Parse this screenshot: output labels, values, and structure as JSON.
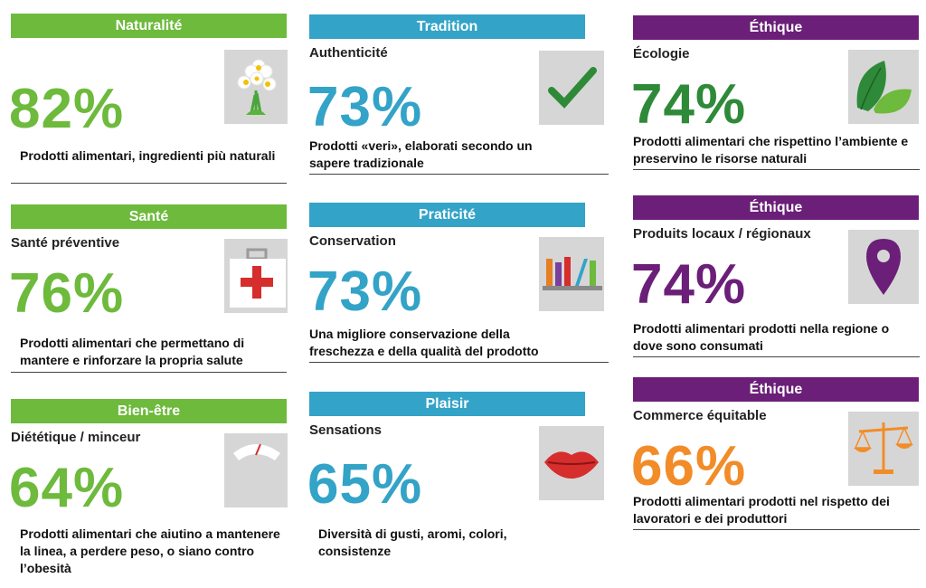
{
  "colors": {
    "green": "#6dba3c",
    "green_dark": "#2e8a38",
    "blue": "#33a3c7",
    "purple": "#6b1f78",
    "orange": "#f28c28",
    "red": "#d62d2d"
  },
  "cards": [
    {
      "header": "Naturalité",
      "subtitle": "",
      "percent": "82%",
      "description": "Prodotti alimentari, ingredienti più naturali",
      "icon": "flower-icon"
    },
    {
      "header": "Santé",
      "subtitle": "Santé préventive",
      "percent": "76%",
      "description": "Prodotti alimentari che permettano di mantere e rinforzare la propria salute",
      "icon": "first-aid-kit-icon"
    },
    {
      "header": "Bien-être",
      "subtitle": "Diététique / minceur",
      "percent": "64%",
      "description": "Prodotti alimentari che aiutino a mantenere la linea, a perdere peso, o siano contro l’obesità",
      "icon": "weighing-scale-icon"
    },
    {
      "header": "Tradition",
      "subtitle": "Authenticité",
      "percent": "73%",
      "description": "Prodotti «veri», elaborati secondo un sapere tradizionale",
      "icon": "checkmark-icon"
    },
    {
      "header": "Praticité",
      "subtitle": "Conservation",
      "percent": "73%",
      "description": "Una migliore conservazione della freschezza e della qualità del prodotto",
      "icon": "shelf-icon"
    },
    {
      "header": "Plaisir",
      "subtitle": "Sensations",
      "percent": "65%",
      "description": "Diversità di gusti, aromi, colori, consistenze",
      "icon": "lips-icon"
    },
    {
      "header": "Éthique",
      "subtitle": "Écologie",
      "percent": "74%",
      "description": "Prodotti alimentari che rispettino l’ambiente e preservino le risorse naturali",
      "icon": "leaves-icon"
    },
    {
      "header": "Éthique",
      "subtitle": "Produits locaux / régionaux",
      "percent": "74%",
      "description": "Prodotti alimentari prodotti nella regione o dove sono consumati",
      "icon": "location-pin-icon"
    },
    {
      "header": "Éthique",
      "subtitle": "Commerce équitable",
      "percent": "66%",
      "description": "Prodotti alimentari prodotti nel rispetto dei lavoratori e dei produttori",
      "icon": "balance-scale-icon"
    }
  ]
}
